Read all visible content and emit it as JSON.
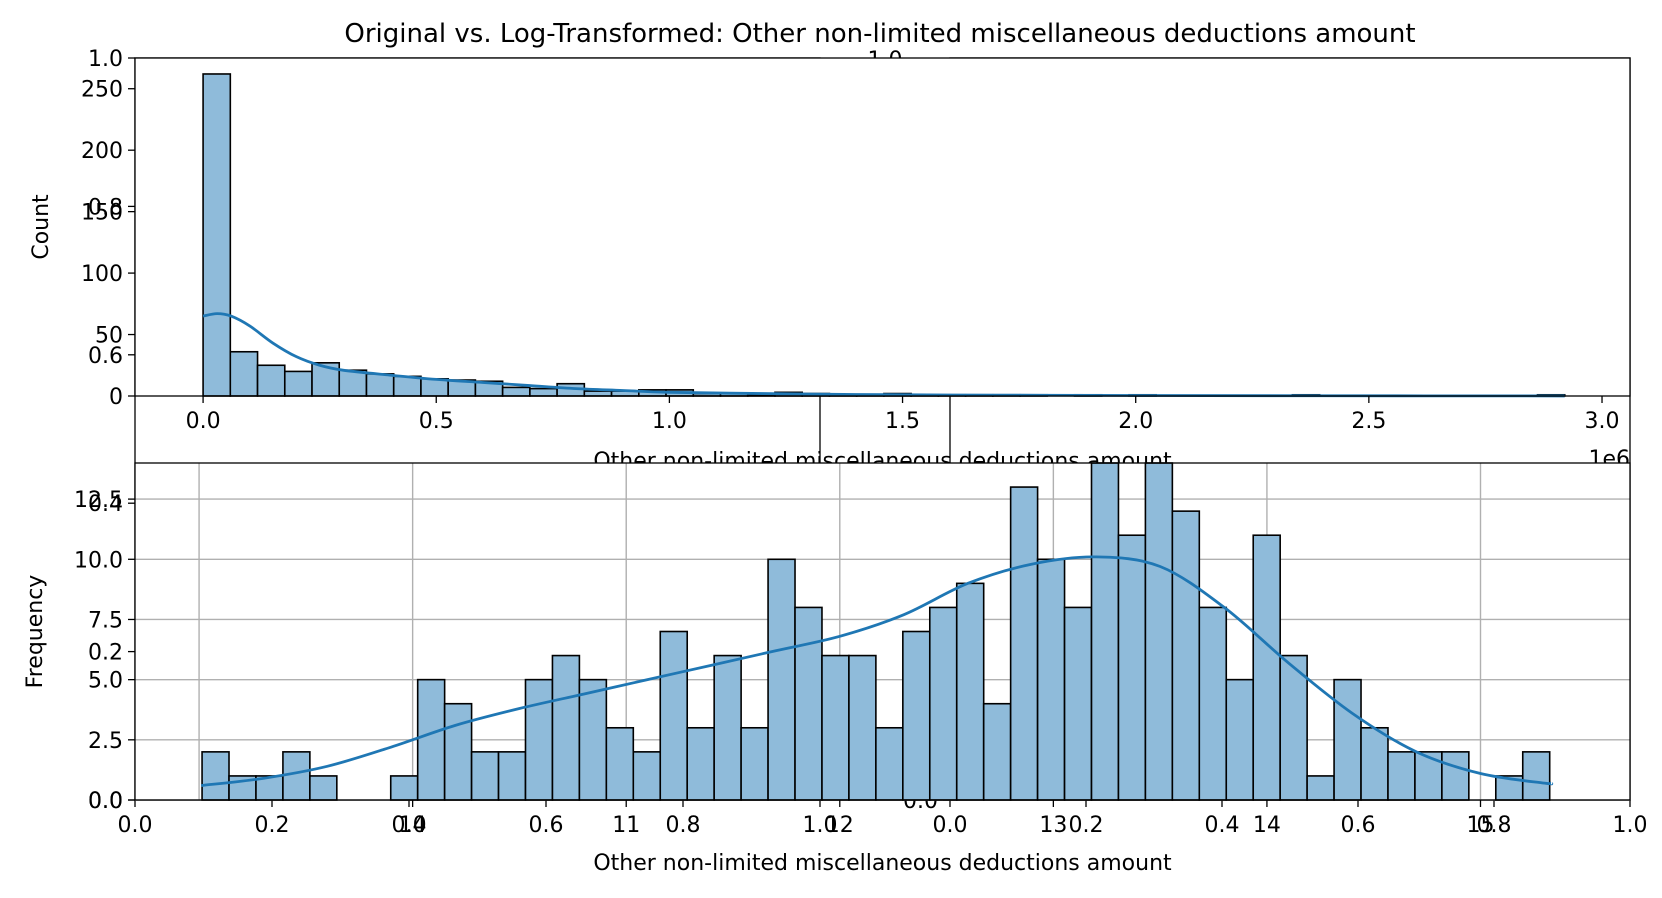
{
  "figure": {
    "title": "Original vs. Log-Transformed: Other non-limited miscellaneous deductions amount"
  },
  "colors": {
    "bar_fill": "#8fbbda",
    "bar_edge": "#000000",
    "kde_line": "#1f77b4",
    "grid": "#b0b0b0"
  },
  "chart_data": [
    {
      "type": "bar",
      "name": "original-histogram",
      "xlabel": "Other non-limited miscellaneous deductions amount",
      "ylabel": "Count",
      "x_offset_label": "1e6",
      "xlim": [
        -0.146,
        3.06
      ],
      "ylim": [
        0,
        275
      ],
      "xticks": [
        0.0,
        0.5,
        1.0,
        1.5,
        2.0,
        2.5,
        3.0
      ],
      "xtick_labels": [
        "0.0",
        "0.5",
        "1.0",
        "1.5",
        "2.0",
        "2.5",
        "3.0"
      ],
      "yticks": [
        0,
        50,
        100,
        150,
        200,
        250
      ],
      "ytick_labels": [
        "0",
        "50",
        "100",
        "150",
        "200",
        "250"
      ],
      "grid": false,
      "bin_start": 0.0,
      "bin_width": 0.0584,
      "counts": [
        262,
        36,
        25,
        20,
        27,
        21,
        18,
        16,
        14,
        13,
        12,
        7,
        6,
        10,
        4,
        4,
        5,
        5,
        2,
        2,
        1,
        3,
        2,
        1,
        1,
        2,
        1,
        1,
        1,
        1,
        1,
        0,
        1,
        0,
        1,
        0,
        0,
        0,
        0,
        0,
        1,
        0,
        0,
        0,
        0,
        0,
        0,
        0,
        0,
        1
      ],
      "kde": {
        "x": [
          0.0,
          0.03,
          0.06,
          0.1,
          0.15,
          0.2,
          0.25,
          0.3,
          0.4,
          0.5,
          0.6,
          0.7,
          0.8,
          0.9,
          1.0,
          1.2,
          1.4,
          1.7,
          2.0,
          2.4,
          2.92
        ],
        "y": [
          65,
          67,
          65,
          57,
          43,
          32,
          25,
          21,
          17,
          13.5,
          11,
          8.5,
          6,
          4.5,
          3,
          2,
          1.2,
          0.7,
          0.4,
          0.2,
          0.05
        ]
      }
    },
    {
      "type": "bar",
      "name": "log-histogram",
      "xlabel": "Other non-limited miscellaneous deductions amount",
      "ylabel": "Frequency",
      "xlim": [
        8.7,
        15.7
      ],
      "ylim": [
        0,
        14
      ],
      "xticks": [
        10,
        11,
        12,
        13,
        14,
        15
      ],
      "xtick_labels": [
        "10",
        "11",
        "12",
        "13",
        "14",
        "15"
      ],
      "yticks": [
        0.0,
        2.5,
        5.0,
        7.5,
        10.0,
        12.5
      ],
      "ytick_labels": [
        "0.0",
        "2.5",
        "5.0",
        "7.5",
        "10.0",
        "12.5"
      ],
      "grid": true,
      "extra_gridlines_x": [
        9.0
      ],
      "bin_start": 9.014,
      "bin_width": 0.1262,
      "counts": [
        2,
        1,
        1,
        2,
        1,
        0,
        0,
        1,
        5,
        4,
        2,
        2,
        5,
        6,
        5,
        3,
        2,
        7,
        3,
        6,
        3,
        10,
        8,
        6,
        6,
        3,
        7,
        8,
        9,
        4,
        13,
        10,
        8,
        14,
        11,
        14,
        12,
        8,
        5,
        11,
        6,
        1,
        5,
        3,
        2,
        2,
        2,
        0,
        1,
        2
      ],
      "kde": {
        "x": [
          9.01,
          9.3,
          9.6,
          9.9,
          10.2,
          10.5,
          10.8,
          11.1,
          11.4,
          11.7,
          12.0,
          12.3,
          12.6,
          12.9,
          13.2,
          13.5,
          13.8,
          14.1,
          14.4,
          14.7,
          15.0,
          15.3,
          15.33
        ],
        "y": [
          0.6,
          0.9,
          1.4,
          2.2,
          3.1,
          3.8,
          4.4,
          5.0,
          5.6,
          6.2,
          6.8,
          7.7,
          9.0,
          9.8,
          10.1,
          9.7,
          8.0,
          5.7,
          3.6,
          2.0,
          1.1,
          0.7,
          0.7
        ]
      }
    },
    {
      "type": "line",
      "name": "overlaid-empty-axes-left",
      "xlim": [
        0,
        1
      ],
      "ylim": [
        0,
        1
      ],
      "xticks": [
        0.0,
        0.2,
        0.4,
        0.6,
        0.8,
        1.0
      ],
      "xtick_labels": [
        "0.0",
        "0.2",
        "0.4",
        "0.6",
        "0.8",
        "1.0"
      ],
      "yticks": [
        0.0,
        0.2,
        0.4,
        0.6,
        0.8,
        1.0
      ],
      "ytick_labels": [
        "0.0",
        "0.2",
        "0.4",
        "0.6",
        "0.8",
        "1.0"
      ]
    },
    {
      "type": "line",
      "name": "overlaid-empty-axes-right",
      "xlim": [
        0,
        1
      ],
      "ylim": [
        0,
        1
      ],
      "xticks": [
        0.0,
        0.2,
        0.4,
        0.6,
        0.8,
        1.0
      ],
      "xtick_labels": [
        "0.0",
        "0.2",
        "0.4",
        "0.6",
        "0.8",
        "1.0"
      ],
      "yticks": [
        0.0
      ],
      "ytick_labels": [
        "0.0"
      ],
      "top_label": "1.0"
    }
  ]
}
